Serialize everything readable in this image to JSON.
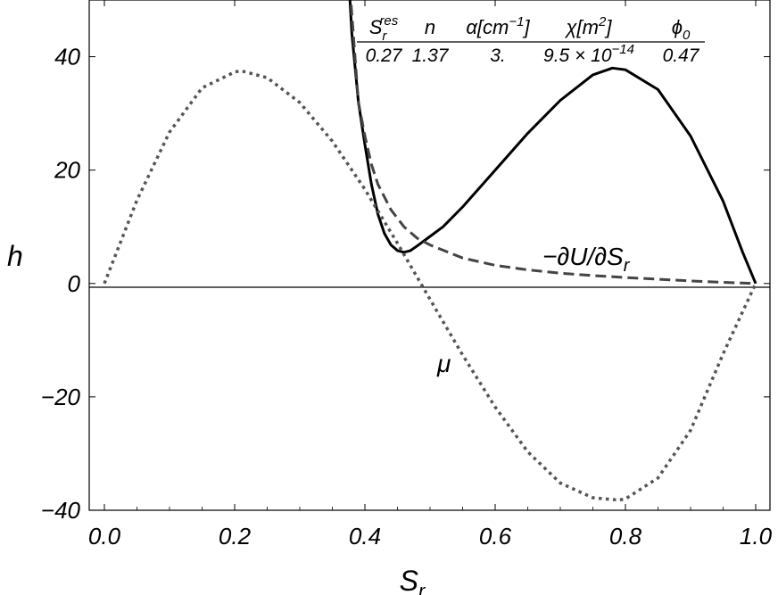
{
  "chart_data": {
    "type": "line",
    "xlabel": "S",
    "xlabel_sub": "r",
    "ylabel": "h",
    "xlim": [
      0.0,
      1.0
    ],
    "ylim": [
      -40,
      50
    ],
    "x_ticks": [
      "0.0",
      "0.2",
      "0.4",
      "0.6",
      "0.8",
      "1.0"
    ],
    "y_ticks": [
      "−40",
      "−20",
      "0",
      "20",
      "40"
    ],
    "grid": false,
    "annotations": {
      "dU": {
        "text": "−∂U/∂S",
        "sub": "r"
      },
      "mu": {
        "text": "μ"
      }
    },
    "parameter_table": {
      "headers": [
        {
          "base": "S",
          "sub": "r",
          "sup": "res"
        },
        {
          "base": "n"
        },
        {
          "base": "α[cm",
          "sup": "−1",
          "tail": "]"
        },
        {
          "base": "χ[m",
          "sup": "2",
          "tail": "]"
        },
        {
          "base": "ϕ",
          "sub": "0"
        }
      ],
      "values": [
        {
          "base": "0.27"
        },
        {
          "base": "1.37"
        },
        {
          "base": "3."
        },
        {
          "base": "9.5 × 10",
          "sup": "−14"
        },
        {
          "base": "0.47"
        }
      ]
    },
    "series": [
      {
        "style": "solid",
        "color": "#000000",
        "x": [
          0.376,
          0.38,
          0.385,
          0.39,
          0.4,
          0.41,
          0.42,
          0.43,
          0.44,
          0.45,
          0.46,
          0.47,
          0.48,
          0.5,
          0.52,
          0.55,
          0.6,
          0.65,
          0.7,
          0.75,
          0.78,
          0.8,
          0.85,
          0.9,
          0.95,
          0.98,
          1.0
        ],
        "y": [
          52,
          44,
          38,
          32,
          24.5,
          17.5,
          12.2,
          8.8,
          6.8,
          5.8,
          5.5,
          5.8,
          6.6,
          8.3,
          10.0,
          13.5,
          20.0,
          26.5,
          32.3,
          36.8,
          38.0,
          37.7,
          34.2,
          26.0,
          14.5,
          5.5,
          0
        ]
      },
      {
        "style": "dashed",
        "color": "#444444",
        "x": [
          0.377,
          0.39,
          0.4,
          0.41,
          0.42,
          0.44,
          0.46,
          0.48,
          0.5,
          0.55,
          0.6,
          0.65,
          0.7,
          0.75,
          0.8,
          0.85,
          0.9,
          0.95,
          1.0
        ],
        "y": [
          52,
          32,
          26,
          21,
          17.5,
          13,
          10,
          8,
          6.8,
          4.5,
          3.2,
          2.4,
          1.8,
          1.4,
          1.05,
          0.75,
          0.45,
          0.2,
          0
        ]
      },
      {
        "style": "dotted",
        "color": "#555555",
        "x": [
          0.0,
          0.05,
          0.1,
          0.15,
          0.2,
          0.21,
          0.25,
          0.3,
          0.35,
          0.4,
          0.45,
          0.5,
          0.55,
          0.6,
          0.65,
          0.7,
          0.75,
          0.79,
          0.8,
          0.85,
          0.9,
          0.95,
          1.0
        ],
        "y": [
          0,
          14.7,
          26.7,
          34.5,
          37.3,
          37.5,
          36.3,
          31.9,
          25.1,
          16.6,
          7.1,
          -2.8,
          -12.6,
          -21.8,
          -29.7,
          -35.2,
          -37.8,
          -38.2,
          -38.0,
          -34.3,
          -25.9,
          -12.4,
          0
        ]
      }
    ]
  }
}
